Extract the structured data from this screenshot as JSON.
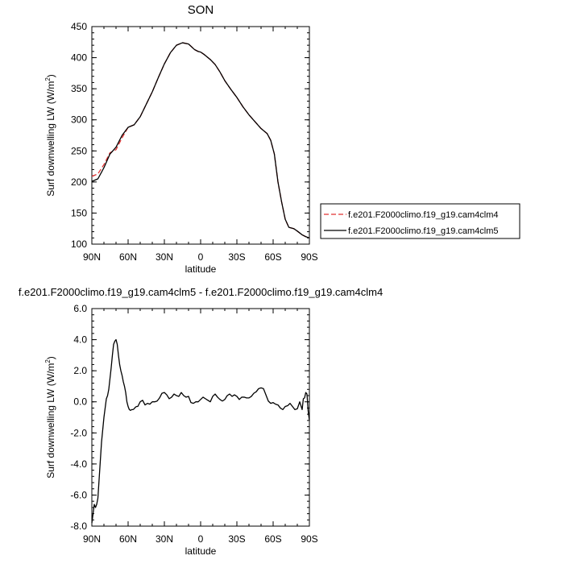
{
  "chart_data": [
    {
      "type": "line",
      "title": "SON",
      "xlabel": "latitude",
      "ylabel": "Surf downwelling LW (W/m",
      "ylabel_sup": "2",
      "ylabel_close": ")",
      "xlim": [
        90,
        -90
      ],
      "ylim": [
        100,
        450
      ],
      "xticks": [
        {
          "v": 90,
          "label": "90N"
        },
        {
          "v": 60,
          "label": "60N"
        },
        {
          "v": 30,
          "label": "30N"
        },
        {
          "v": 0,
          "label": "0"
        },
        {
          "v": -30,
          "label": "30S"
        },
        {
          "v": -60,
          "label": "60S"
        },
        {
          "v": -90,
          "label": "90S"
        }
      ],
      "yticks": [
        {
          "v": 100,
          "label": "100"
        },
        {
          "v": 150,
          "label": "150"
        },
        {
          "v": 200,
          "label": "200"
        },
        {
          "v": 250,
          "label": "250"
        },
        {
          "v": 300,
          "label": "300"
        },
        {
          "v": 350,
          "label": "350"
        },
        {
          "v": 400,
          "label": "400"
        },
        {
          "v": 450,
          "label": "450"
        }
      ],
      "legend_position": "right",
      "series": [
        {
          "name": "f.e201.F2000climo.f19_g19.cam4clm4",
          "color": "#e03030",
          "dash": "dashed",
          "x": [
            90,
            85,
            80,
            75,
            70,
            65,
            60,
            55,
            50,
            45,
            40,
            35,
            30,
            25,
            20,
            15,
            10,
            5,
            2,
            0,
            -3,
            -8,
            -12,
            -16,
            -20,
            -25,
            -30,
            -35,
            -40,
            -45,
            -50,
            -55,
            -58,
            -61,
            -64,
            -67,
            -70,
            -73,
            -77,
            -80,
            -84,
            -87,
            -90
          ],
          "values": [
            209,
            213,
            228,
            247,
            252,
            271,
            288,
            292,
            305,
            325,
            345,
            368,
            390,
            408,
            420,
            424,
            422,
            413,
            410,
            409,
            405,
            397,
            389,
            377,
            363,
            349,
            336,
            321,
            308,
            297,
            286,
            278,
            267,
            245,
            200,
            168,
            140,
            127,
            125,
            121,
            115,
            112,
            110
          ]
        },
        {
          "name": "f.e201.F2000climo.f19_g19.cam4clm5",
          "color": "#000000",
          "dash": "solid",
          "x": [
            90,
            85,
            80,
            75,
            70,
            65,
            60,
            55,
            50,
            45,
            40,
            35,
            30,
            25,
            20,
            15,
            10,
            5,
            2,
            0,
            -3,
            -8,
            -12,
            -16,
            -20,
            -25,
            -30,
            -35,
            -40,
            -45,
            -50,
            -55,
            -58,
            -61,
            -64,
            -67,
            -70,
            -73,
            -77,
            -80,
            -84,
            -87,
            -90
          ],
          "values": [
            201,
            205,
            223,
            245,
            256,
            275,
            288,
            292,
            305,
            325,
            345,
            368,
            390,
            408,
            420,
            424,
            422,
            413,
            410,
            409,
            405,
            397,
            389,
            377,
            363,
            349,
            336,
            321,
            308,
            297,
            286,
            278,
            267,
            245,
            200,
            168,
            140,
            127,
            125,
            121,
            115,
            112,
            110
          ]
        }
      ]
    },
    {
      "type": "line",
      "title": "f.e201.F2000climo.f19_g19.cam4clm5 - f.e201.F2000climo.f19_g19.cam4clm4",
      "xlabel": "latitude",
      "ylabel": "Surf downwelling LW (W/m",
      "ylabel_sup": "2",
      "ylabel_close": ")",
      "xlim": [
        90,
        -90
      ],
      "ylim": [
        -8.0,
        6.0
      ],
      "xticks": [
        {
          "v": 90,
          "label": "90N"
        },
        {
          "v": 60,
          "label": "60N"
        },
        {
          "v": 30,
          "label": "30N"
        },
        {
          "v": 0,
          "label": "0"
        },
        {
          "v": -30,
          "label": "30S"
        },
        {
          "v": -60,
          "label": "60S"
        },
        {
          "v": -90,
          "label": "90S"
        }
      ],
      "yticks": [
        {
          "v": -8,
          "label": "-8.0"
        },
        {
          "v": -6,
          "label": "-6.0"
        },
        {
          "v": -4,
          "label": "-4.0"
        },
        {
          "v": -2,
          "label": "-2.0"
        },
        {
          "v": 0,
          "label": "0.0"
        },
        {
          "v": 2,
          "label": "2.0"
        },
        {
          "v": 4,
          "label": "4.0"
        },
        {
          "v": 6,
          "label": "6.0"
        }
      ],
      "series": [
        {
          "color": "#000000",
          "dash": "solid",
          "x": [
            90,
            88,
            87,
            86,
            85,
            84,
            83,
            82,
            81,
            80,
            79,
            78,
            77,
            76,
            75,
            74,
            73,
            72,
            71,
            70,
            69,
            68,
            67,
            66,
            65,
            64,
            63,
            62,
            61,
            60,
            59,
            58,
            57,
            56,
            55,
            54,
            53,
            52,
            50,
            48,
            46,
            44,
            42,
            40,
            38,
            36,
            34,
            32,
            30,
            28,
            26,
            24,
            22,
            20,
            18,
            16,
            14,
            12,
            10,
            8,
            6,
            4,
            2,
            0,
            -2,
            -4,
            -6,
            -8,
            -10,
            -12,
            -14,
            -16,
            -18,
            -20,
            -22,
            -24,
            -26,
            -28,
            -30,
            -32,
            -34,
            -36,
            -38,
            -40,
            -42,
            -44,
            -46,
            -48,
            -50,
            -52,
            -54,
            -56,
            -58,
            -60,
            -62,
            -64,
            -66,
            -68,
            -70,
            -72,
            -74,
            -76,
            -78,
            -80,
            -82,
            -84,
            -85,
            -86,
            -87,
            -88,
            -89,
            -90
          ],
          "values": [
            -7.8,
            -6.6,
            -6.8,
            -6.6,
            -6.2,
            -5.0,
            -3.8,
            -2.6,
            -1.8,
            -1.0,
            -0.4,
            0.2,
            0.4,
            0.8,
            1.5,
            2.2,
            3.0,
            3.7,
            3.9,
            4.0,
            3.7,
            3.0,
            2.4,
            2.0,
            1.7,
            1.3,
            1.0,
            0.6,
            0.0,
            -0.3,
            -0.5,
            -0.55,
            -0.5,
            -0.5,
            -0.45,
            -0.35,
            -0.3,
            -0.3,
            0.0,
            0.1,
            -0.2,
            -0.1,
            -0.15,
            0.0,
            0.0,
            0.05,
            0.25,
            0.55,
            0.6,
            0.45,
            0.2,
            0.3,
            0.5,
            0.4,
            0.35,
            0.6,
            0.4,
            0.3,
            0.35,
            -0.05,
            -0.1,
            0.0,
            0.0,
            0.15,
            0.3,
            0.2,
            0.1,
            0.0,
            0.35,
            0.5,
            0.3,
            0.15,
            0.05,
            0.15,
            0.4,
            0.5,
            0.35,
            0.45,
            0.35,
            0.15,
            0.3,
            0.3,
            0.25,
            0.25,
            0.35,
            0.55,
            0.65,
            0.85,
            0.9,
            0.85,
            0.45,
            0.05,
            -0.1,
            -0.05,
            -0.15,
            -0.2,
            -0.4,
            -0.5,
            -0.3,
            -0.25,
            -0.1,
            -0.3,
            -0.5,
            -0.45,
            0.0,
            -0.5,
            0.2,
            0.25,
            0.6,
            0.5,
            -0.6,
            -1.2
          ]
        }
      ]
    }
  ]
}
